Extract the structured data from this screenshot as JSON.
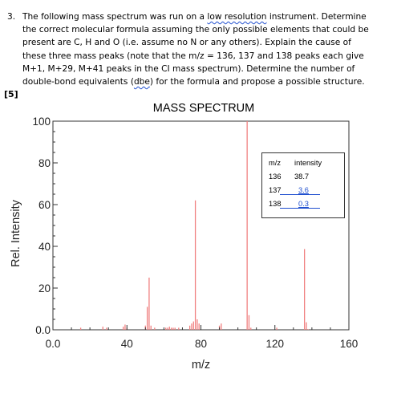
{
  "question": {
    "number": "3.",
    "lines": [
      "The following mass spectrum was run on a low resolution instrument.  Determine",
      "the correct molecular formula assuming the only possible elements that could be",
      "present are C, H and O (i.e. assume no N or any others).  Explain the cause of",
      "these three mass peaks (note that the m/z = 136, 137 and 138 peaks each give",
      "M+1, M+29, M+41 peaks in the CI mass spectrum).  Determine the number of",
      "double-bond equivalents (dbe) for the formula and propose a possible structure."
    ],
    "marks": "[5]"
  },
  "chart_data": {
    "type": "bar",
    "title": "MASS SPECTRUM",
    "xlabel": "m/z",
    "ylabel": "Rel. Intensity",
    "xlim": [
      0,
      160
    ],
    "ylim": [
      0,
      100
    ],
    "x_ticks": [
      "0.0",
      "40",
      "80",
      "120",
      "160"
    ],
    "y_ticks": [
      "0.0",
      "20",
      "40",
      "60",
      "80",
      "100"
    ],
    "bar_color": "#f08080",
    "grid": false,
    "peaks": [
      {
        "mz": 15,
        "intensity": 1
      },
      {
        "mz": 27,
        "intensity": 1.5
      },
      {
        "mz": 29,
        "intensity": 1
      },
      {
        "mz": 38,
        "intensity": 1.5
      },
      {
        "mz": 39,
        "intensity": 2.5
      },
      {
        "mz": 40,
        "intensity": 1
      },
      {
        "mz": 50,
        "intensity": 2
      },
      {
        "mz": 51,
        "intensity": 11
      },
      {
        "mz": 52,
        "intensity": 25
      },
      {
        "mz": 53,
        "intensity": 2
      },
      {
        "mz": 55,
        "intensity": 1
      },
      {
        "mz": 61,
        "intensity": 1
      },
      {
        "mz": 62,
        "intensity": 1
      },
      {
        "mz": 63,
        "intensity": 1.5
      },
      {
        "mz": 64,
        "intensity": 1
      },
      {
        "mz": 65,
        "intensity": 1
      },
      {
        "mz": 66,
        "intensity": 1
      },
      {
        "mz": 68,
        "intensity": 1
      },
      {
        "mz": 74,
        "intensity": 2
      },
      {
        "mz": 75,
        "intensity": 3
      },
      {
        "mz": 76,
        "intensity": 4
      },
      {
        "mz": 77,
        "intensity": 62
      },
      {
        "mz": 78,
        "intensity": 5
      },
      {
        "mz": 79,
        "intensity": 3
      },
      {
        "mz": 90,
        "intensity": 2
      },
      {
        "mz": 91,
        "intensity": 3
      },
      {
        "mz": 105,
        "intensity": 100
      },
      {
        "mz": 106,
        "intensity": 7
      },
      {
        "mz": 107,
        "intensity": 1
      },
      {
        "mz": 121,
        "intensity": 1
      },
      {
        "mz": 136,
        "intensity": 38.7
      },
      {
        "mz": 137,
        "intensity": 3.6
      },
      {
        "mz": 138,
        "intensity": 0.3
      }
    ],
    "inset_table": {
      "headers": [
        "m/z",
        "intensity"
      ],
      "rows": [
        [
          "136",
          "38.7"
        ],
        [
          "137",
          "3.6"
        ],
        [
          "138",
          "0.3"
        ]
      ]
    }
  }
}
